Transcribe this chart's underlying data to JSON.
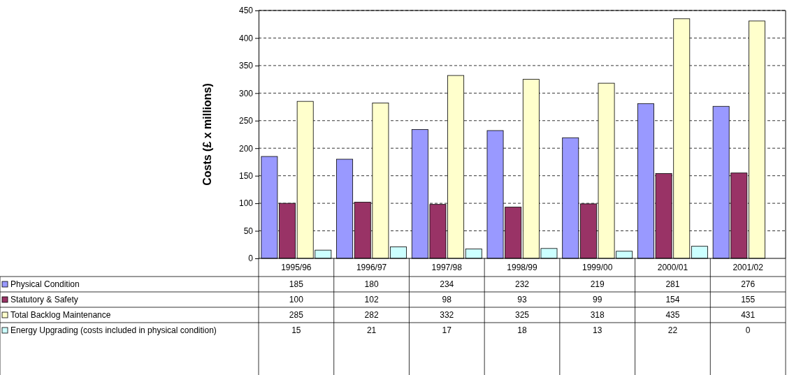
{
  "chart_data": {
    "type": "bar",
    "ylabel": "Costs (£ x millions)",
    "categories": [
      "1995/96",
      "1996/97",
      "1997/98",
      "1998/99",
      "1999/00",
      "2000/01",
      "2001/02"
    ],
    "series": [
      {
        "name": "Physical Condition",
        "color": "#9999ff",
        "values": [
          185,
          180,
          234,
          232,
          219,
          281,
          276
        ]
      },
      {
        "name": "Statutory & Safety",
        "color": "#993366",
        "values": [
          100,
          102,
          98,
          93,
          99,
          154,
          155
        ]
      },
      {
        "name": "Total Backlog Maintenance",
        "color": "#ffffcc",
        "values": [
          285,
          282,
          332,
          325,
          318,
          435,
          431
        ]
      },
      {
        "name": "Energy Upgrading (costs included in physical condition)",
        "color": "#ccffff",
        "values": [
          15,
          21,
          17,
          18,
          13,
          22,
          0
        ]
      }
    ],
    "ylim": [
      0,
      450
    ],
    "yticks": [
      0,
      50,
      100,
      150,
      200,
      250,
      300,
      350,
      400,
      450
    ],
    "grid": "y",
    "legend": "bottom",
    "data_labels": true
  }
}
